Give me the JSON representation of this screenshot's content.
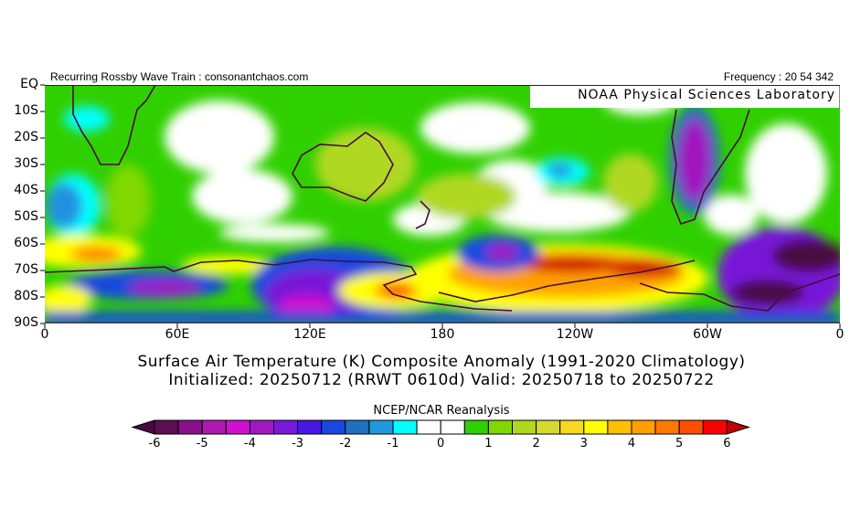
{
  "header": {
    "left_title": "Recurring Rossby Wave Train : consonantchaos.com",
    "right_title": "Frequency : 20 54 342",
    "lab": "NOAA Physical Sciences Laboratory"
  },
  "lat_labels": [
    "EQ",
    "10S",
    "20S",
    "30S",
    "40S",
    "50S",
    "60S",
    "70S",
    "80S",
    "90S"
  ],
  "lon_labels": [
    "0",
    "60E",
    "120E",
    "180",
    "120W",
    "60W",
    "0"
  ],
  "caption": {
    "line1": "Surface Air Temperature (K) Composite Anomaly (1991-2020 Climatology)",
    "line2": "Initialized: 20250712 (RRWT 0610d) Valid: 20250718 to 20250722"
  },
  "colorbar": {
    "title": "NCEP/NCAR Reanalysis",
    "labels": [
      "-6",
      "-5",
      "-4",
      "-3",
      "-2",
      "-1",
      "0",
      "1",
      "2",
      "3",
      "4",
      "5",
      "6"
    ],
    "colors": [
      "#5a1050",
      "#8c108c",
      "#b018b0",
      "#d010d0",
      "#a018c0",
      "#7818d8",
      "#4818e0",
      "#1848e0",
      "#2070c0",
      "#2098e0",
      "#00ffff",
      "#ffffff",
      "#ffffff",
      "#30d000",
      "#80d800",
      "#b0d820",
      "#d8d830",
      "#f8d820",
      "#ffff00",
      "#ffc000",
      "#ffa000",
      "#ff7800",
      "#ff5000",
      "#ff0000"
    ],
    "low_arrow": "#4a0a40",
    "high_arrow": "#c00000"
  }
}
